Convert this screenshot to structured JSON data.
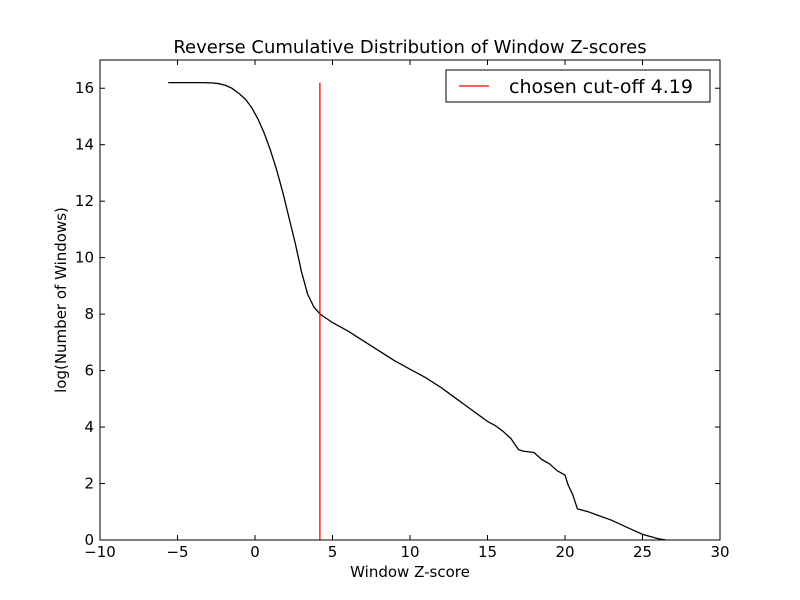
{
  "chart_data": {
    "type": "line",
    "title": "Reverse Cumulative Distribution of Window Z-scores",
    "xlabel": "Window Z-score",
    "ylabel": "log(Number of Windows)",
    "xlim": [
      -10,
      30
    ],
    "ylim": [
      0,
      17
    ],
    "xticks": [
      -10,
      -5,
      0,
      5,
      10,
      15,
      20,
      25,
      30
    ],
    "xtick_labels": [
      "−10",
      "−5",
      "0",
      "5",
      "10",
      "15",
      "20",
      "25",
      "30"
    ],
    "yticks": [
      0,
      2,
      4,
      6,
      8,
      10,
      12,
      14,
      16
    ],
    "ytick_labels": [
      "0",
      "2",
      "4",
      "6",
      "8",
      "10",
      "12",
      "14",
      "16"
    ],
    "grid": false,
    "legend_position": "top-right",
    "series": [
      {
        "name": "",
        "color": "#000000",
        "x": [
          -5.6,
          -4.5,
          -3.5,
          -2.8,
          -2.3,
          -1.9,
          -1.5,
          -1.0,
          -0.6,
          -0.2,
          0.2,
          0.6,
          1.0,
          1.4,
          1.8,
          2.2,
          2.6,
          3.0,
          3.4,
          3.8,
          4.2,
          5.0,
          6.0,
          7.0,
          8.0,
          9.0,
          10.0,
          11.0,
          12.0,
          12.5,
          13.0,
          13.5,
          14.0,
          14.5,
          15.0,
          15.5,
          16.0,
          16.5,
          17.0,
          17.3,
          18.0,
          18.5,
          19.0,
          19.5,
          20.0,
          20.2,
          20.5,
          20.8,
          21.5,
          22.0,
          23.0,
          24.0,
          25.0,
          26.0,
          26.5
        ],
        "y": [
          16.2,
          16.2,
          16.2,
          16.19,
          16.16,
          16.1,
          16.0,
          15.8,
          15.6,
          15.3,
          14.9,
          14.4,
          13.8,
          13.1,
          12.3,
          11.4,
          10.5,
          9.5,
          8.7,
          8.25,
          8.0,
          7.7,
          7.4,
          7.05,
          6.7,
          6.35,
          6.05,
          5.75,
          5.4,
          5.2,
          5.0,
          4.8,
          4.6,
          4.4,
          4.2,
          4.05,
          3.85,
          3.6,
          3.2,
          3.15,
          3.1,
          2.85,
          2.7,
          2.45,
          2.3,
          1.95,
          1.6,
          1.1,
          1.0,
          0.9,
          0.7,
          0.45,
          0.2,
          0.05,
          0.0
        ]
      },
      {
        "name": "chosen cut-off 4.19",
        "color": "#ff0000",
        "x": [
          4.19,
          4.19
        ],
        "y": [
          0,
          16.2
        ]
      }
    ]
  }
}
